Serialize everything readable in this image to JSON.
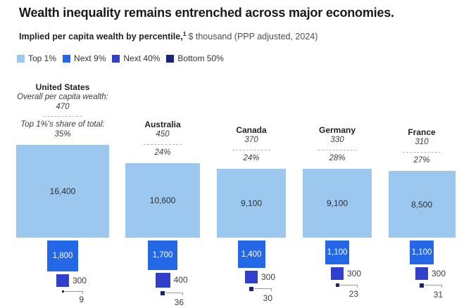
{
  "title": "Wealth inequality remains entrenched across major economies.",
  "subtitle": {
    "bold_text": "Implied per capita wealth by percentile,",
    "footnote_marker": "1",
    "regular_text": "$ thousand (PPP adjusted, 2024)"
  },
  "legend": [
    {
      "label": "Top 1%",
      "color": "#9cc8f0"
    },
    {
      "label": "Next 9%",
      "color": "#2468e8"
    },
    {
      "label": "Next 40%",
      "color": "#3040cc"
    },
    {
      "label": "Bottom 50%",
      "color": "#17257a"
    }
  ],
  "chart_data": {
    "type": "proportional-square-bar",
    "title": "Wealth inequality remains entrenched across major economies.",
    "subtitle": "Implied per capita wealth by percentile, $ thousand (PPP adjusted, 2024)",
    "unit": "$ thousand (PPP adjusted, 2024)",
    "segments": [
      "Top 1%",
      "Next 9%",
      "Next 40%",
      "Bottom 50%"
    ],
    "annotations": {
      "overall_label": "Overall per capita wealth:",
      "share_label": "Top 1%'s share of total:"
    },
    "countries": [
      {
        "name": "United States",
        "overall": "470",
        "share": "35%",
        "show_annotation_labels": true,
        "values": [
          16400,
          1800,
          300,
          9
        ],
        "value_labels": [
          "16,400",
          "1,800",
          "300",
          "9"
        ]
      },
      {
        "name": "Australia",
        "overall": "450",
        "share": "24%",
        "show_annotation_labels": false,
        "values": [
          10600,
          1700,
          400,
          36
        ],
        "value_labels": [
          "10,600",
          "1,700",
          "400",
          "36"
        ]
      },
      {
        "name": "Canada",
        "overall": "370",
        "share": "24%",
        "show_annotation_labels": false,
        "values": [
          9100,
          1400,
          300,
          30
        ],
        "value_labels": [
          "9,100",
          "1,400",
          "300",
          "30"
        ]
      },
      {
        "name": "Germany",
        "overall": "330",
        "share": "28%",
        "show_annotation_labels": false,
        "values": [
          9100,
          1100,
          300,
          23
        ],
        "value_labels": [
          "9,100",
          "1,100",
          "300",
          "23"
        ]
      },
      {
        "name": "France",
        "overall": "310",
        "share": "27%",
        "show_annotation_labels": false,
        "values": [
          8500,
          1100,
          300,
          31
        ],
        "value_labels": [
          "8,500",
          "1,100",
          "300",
          "31"
        ]
      }
    ]
  }
}
